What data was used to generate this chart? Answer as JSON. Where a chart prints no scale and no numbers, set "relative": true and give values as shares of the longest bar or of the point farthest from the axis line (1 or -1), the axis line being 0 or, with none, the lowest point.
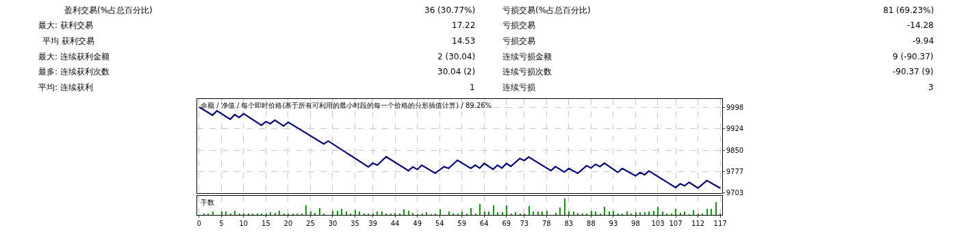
{
  "chart_data": [
    {
      "type": "other",
      "annotations": [
        "盈利交易(%占总百分比)",
        "36 (30.77%)",
        "亏损交易(%占总百分比)",
        "81 (69.23%)",
        "最大: 获利交易",
        "17.22",
        "亏损交易",
        "-14.28",
        "平均 获利交易",
        "14.53",
        "亏损交易",
        "-9.94",
        "最大: 连续获利金额",
        "2 (30.04)",
        "连续亏损金额",
        "9 (-90.37)",
        "最多: 连续获利次数",
        "30.04 (2)",
        "连续亏损次数",
        "-90.37 (9)",
        "平均: 连续获利",
        "1",
        "连续亏损",
        "3"
      ]
    },
    {
      "type": "line",
      "title": "余额 / 净值 / 每个即时价格(基于所有可利用的最小时段的每一个价格的分形插值计算) / 89.26%",
      "grid": true,
      "tick_labels": "y",
      "line_style": "solid",
      "xlim": [
        -0.5,
        117.4
      ],
      "xticks": [
        0,
        5,
        10,
        15,
        20,
        25,
        30,
        35,
        39,
        44,
        49,
        54,
        59,
        64,
        69,
        73,
        78,
        83,
        88,
        93,
        98,
        103,
        107,
        112,
        117
      ],
      "ylim": [
        9703,
        10026
      ],
      "yticks": [
        9703,
        9777,
        9850,
        9924,
        9998
      ],
      "series": [
        {
          "color": "#000080",
          "x": [
            0,
            3,
            4,
            7,
            8,
            9,
            10,
            14,
            15,
            16,
            17,
            19,
            20,
            28,
            29,
            38,
            39,
            40,
            42,
            47,
            48,
            49,
            50,
            53,
            55,
            56,
            58,
            61,
            62,
            63,
            64,
            66,
            67,
            68,
            69,
            70,
            72,
            73,
            74,
            79,
            80,
            82,
            83,
            85,
            87,
            88,
            89,
            90,
            91,
            94,
            95,
            98,
            99,
            100,
            101,
            107,
            108,
            109,
            110,
            112,
            114,
            117
          ],
          "values": [
            9999,
            9971,
            9986,
            9957,
            9973,
            9963,
            9976,
            9936,
            9949,
            9942,
            9954,
            9934,
            9947,
            9872,
            9882,
            9793,
            9806,
            9799,
            9828,
            9780,
            9793,
            9784,
            9799,
            9771,
            9794,
            9788,
            9816,
            9788,
            9799,
            9789,
            9805,
            9785,
            9799,
            9789,
            9805,
            9795,
            9822,
            9815,
            9827,
            9780,
            9794,
            9775,
            9788,
            9771,
            9797,
            9789,
            9802,
            9794,
            9806,
            9774,
            9788,
            9762,
            9774,
            9766,
            9779,
            9722,
            9735,
            9728,
            9740,
            9720,
            9746,
            9720
          ]
        }
      ]
    },
    {
      "type": "bar",
      "title": "手数",
      "relative": true,
      "grid": "x",
      "tick_labels": "x",
      "color": "#00a000",
      "xlim": [
        -0.5,
        117.4
      ],
      "xticks": [
        0,
        5,
        10,
        15,
        20,
        25,
        30,
        35,
        39,
        44,
        49,
        54,
        59,
        64,
        69,
        73,
        78,
        83,
        88,
        93,
        98,
        103,
        107,
        112,
        117
      ],
      "x": [
        1,
        2,
        3,
        5,
        6,
        7,
        8,
        9,
        10,
        11,
        12,
        13,
        14,
        15,
        16,
        17,
        18,
        19,
        20,
        21,
        22,
        23,
        24,
        25,
        26,
        27,
        28,
        30,
        31,
        32,
        33,
        34,
        35,
        36,
        37,
        38,
        39,
        40,
        41,
        42,
        43,
        44,
        45,
        46,
        47,
        48,
        49,
        50,
        51,
        52,
        53,
        54,
        56,
        57,
        58,
        59,
        60,
        61,
        62,
        63,
        64,
        65,
        66,
        67,
        68,
        69,
        70,
        71,
        72,
        73,
        74,
        75,
        76,
        77,
        78,
        80,
        81,
        82,
        83,
        84,
        85,
        86,
        87,
        88,
        89,
        90,
        91,
        92,
        93,
        94,
        95,
        96,
        97,
        98,
        99,
        100,
        101,
        102,
        103,
        104,
        105,
        106,
        107,
        108,
        109,
        110,
        111,
        112,
        113,
        114,
        115,
        116,
        117
      ],
      "values": [
        0.09,
        0.09,
        0.2,
        0.22,
        0.22,
        0.1,
        0.27,
        0.1,
        0.09,
        0.09,
        0.09,
        0.09,
        0.09,
        0.1,
        0.16,
        0.15,
        0.26,
        0.09,
        0.09,
        0.09,
        0.1,
        0.09,
        0.58,
        0.2,
        0.15,
        0.41,
        0.1,
        0.27,
        0.24,
        0.38,
        0.2,
        0.08,
        0.3,
        0.23,
        0.1,
        0.08,
        0.1,
        0.22,
        0.2,
        0.1,
        0.1,
        0.13,
        0.1,
        0.34,
        0.27,
        0.13,
        0.06,
        0.08,
        0.16,
        0.06,
        0.08,
        0.34,
        0.22,
        0.1,
        0.1,
        0.2,
        0.1,
        0.41,
        0.1,
        0.65,
        0.23,
        0.23,
        0.58,
        0.19,
        0.19,
        0.58,
        0.1,
        0.17,
        0.1,
        0.1,
        0.55,
        0.23,
        0.2,
        0.22,
        0.27,
        0.13,
        0.44,
        1,
        0.23,
        0.23,
        0.13,
        0.08,
        0.1,
        0.26,
        0.23,
        0.1,
        0.48,
        0.23,
        0.26,
        0.1,
        0.1,
        0.23,
        0.1,
        0.17,
        0.17,
        0.19,
        0.2,
        0.26,
        0.5,
        0.23,
        0.1,
        0.1,
        0.37,
        0.13,
        0.23,
        0.05,
        0.29,
        0.1,
        0.1,
        0.37,
        0.37,
        0.79,
        0.1
      ]
    }
  ]
}
